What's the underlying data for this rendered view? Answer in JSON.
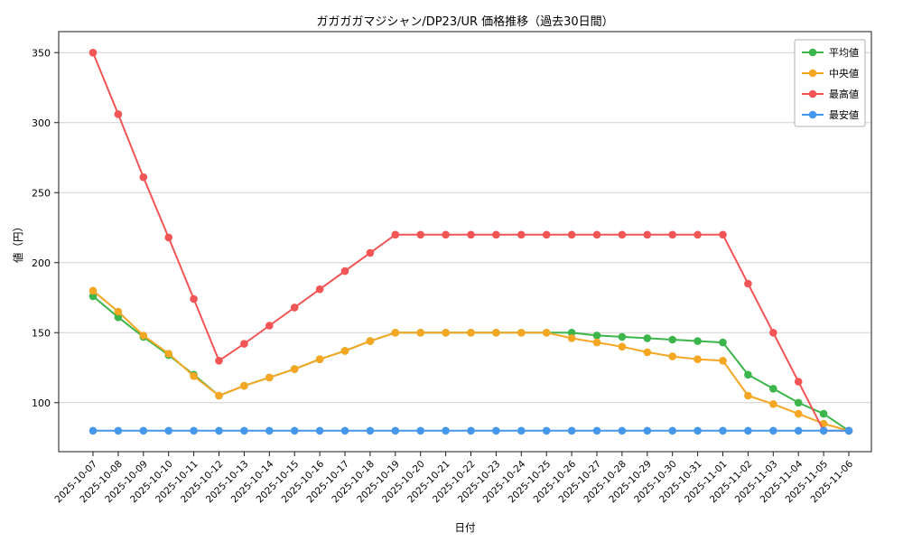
{
  "chart_data": {
    "type": "line",
    "title": "ガガガガマジシャン/DP23/UR 価格推移（過去30日間）",
    "xlabel": "日付",
    "ylabel": "値（円）",
    "x": [
      "2025-10-07",
      "2025-10-08",
      "2025-10-09",
      "2025-10-10",
      "2025-10-11",
      "2025-10-12",
      "2025-10-13",
      "2025-10-14",
      "2025-10-15",
      "2025-10-16",
      "2025-10-17",
      "2025-10-18",
      "2025-10-19",
      "2025-10-20",
      "2025-10-21",
      "2025-10-22",
      "2025-10-23",
      "2025-10-24",
      "2025-10-25",
      "2025-10-26",
      "2025-10-27",
      "2025-10-28",
      "2025-10-29",
      "2025-10-30",
      "2025-10-31",
      "2025-11-01",
      "2025-11-02",
      "2025-11-03",
      "2025-11-04",
      "2025-11-05",
      "2025-11-06"
    ],
    "series": [
      {
        "key": "average",
        "name": "平均値",
        "color": "#3cb54a",
        "values": [
          176,
          161,
          147,
          134,
          120,
          105,
          112,
          118,
          124,
          131,
          137,
          144,
          150,
          150,
          150,
          150,
          150,
          150,
          150,
          150,
          148,
          147,
          146,
          145,
          144,
          143,
          120,
          110,
          100,
          92,
          80
        ]
      },
      {
        "key": "median",
        "name": "中央値",
        "color": "#f5a623",
        "values": [
          180,
          165,
          148,
          135,
          119,
          105,
          112,
          118,
          124,
          131,
          137,
          144,
          150,
          150,
          150,
          150,
          150,
          150,
          150,
          146,
          143,
          140,
          136,
          133,
          131,
          130,
          105,
          99,
          92,
          85,
          80
        ]
      },
      {
        "key": "max",
        "name": "最高値",
        "color": "#f25555",
        "values": [
          350,
          306,
          261,
          218,
          174,
          130,
          142,
          155,
          168,
          181,
          194,
          207,
          220,
          220,
          220,
          220,
          220,
          220,
          220,
          220,
          220,
          220,
          220,
          220,
          220,
          220,
          185,
          150,
          115,
          80,
          80
        ]
      },
      {
        "key": "min",
        "name": "最安値",
        "color": "#4597ec",
        "values": [
          80,
          80,
          80,
          80,
          80,
          80,
          80,
          80,
          80,
          80,
          80,
          80,
          80,
          80,
          80,
          80,
          80,
          80,
          80,
          80,
          80,
          80,
          80,
          80,
          80,
          80,
          80,
          80,
          80,
          80,
          80
        ]
      }
    ],
    "ylim": [
      65,
      365
    ],
    "yticks": [
      100,
      150,
      200,
      250,
      300,
      350
    ],
    "grid": true,
    "legend_position": "top-right",
    "x_tick_rotation": 45
  }
}
